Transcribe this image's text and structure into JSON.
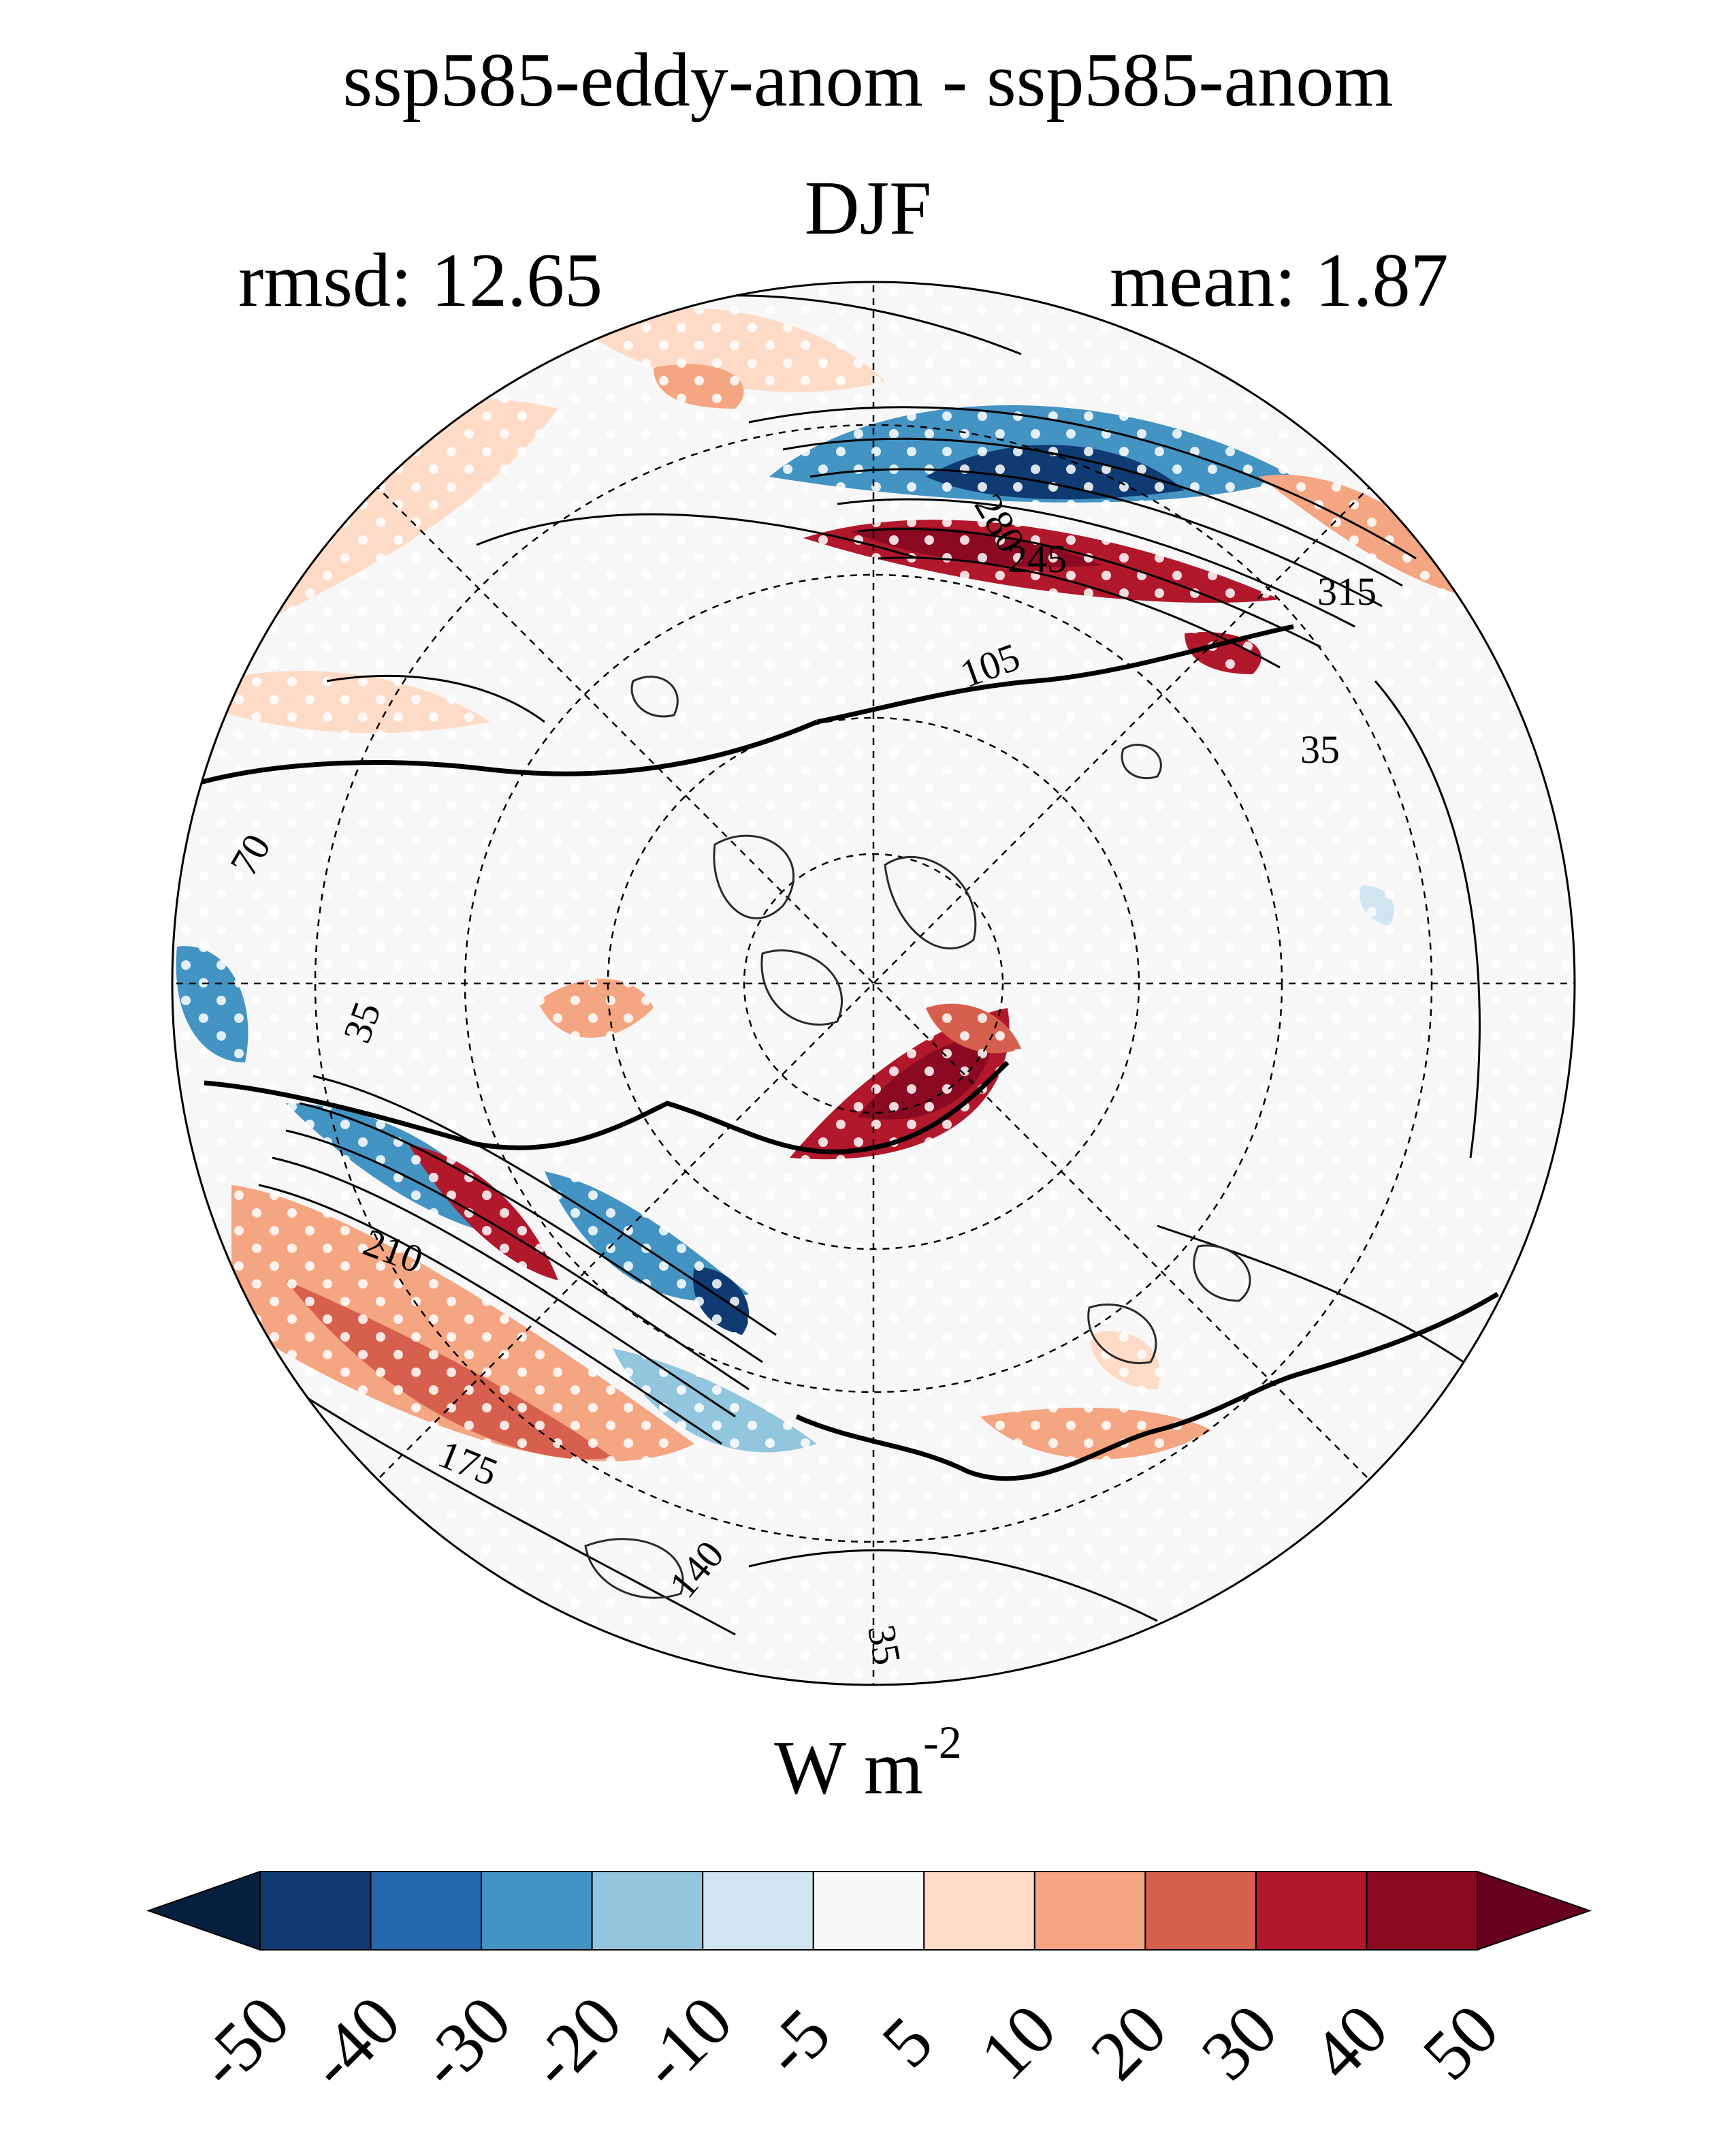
{
  "figure": {
    "title_line1": "ssp585-eddy-anom - ssp585-anom",
    "title_line2": "DJF",
    "rmsd_text": "rmsd: 12.65",
    "mean_text": "mean: 1.87"
  },
  "chart_data": {
    "type": "heatmap",
    "projection": "north polar stereographic",
    "title": "ssp585-eddy-anom - ssp585-anom",
    "season": "DJF",
    "stats": {
      "rmsd": 12.65,
      "mean": 1.87
    },
    "colorbar": {
      "unit_base": "W m",
      "unit_exponent": "-2",
      "tick_labels": [
        "-50",
        "-40",
        "-30",
        "-20",
        "-10",
        "-5",
        "5",
        "10",
        "20",
        "30",
        "40",
        "50"
      ],
      "levels": [
        -50,
        -40,
        -30,
        -20,
        -10,
        -5,
        5,
        10,
        20,
        30,
        40,
        50
      ],
      "colors": [
        "#08203f",
        "#0f3b72",
        "#2367ad",
        "#4393c3",
        "#92c5de",
        "#d1e5f0",
        "#f7f7f7",
        "#fddbc7",
        "#f4a582",
        "#d6604d",
        "#b2182b",
        "#8b0a22",
        "#67001f"
      ],
      "extend": "both"
    },
    "contour_labels": [
      "315",
      "280",
      "245",
      "210",
      "175",
      "140",
      "105",
      "70",
      "35"
    ],
    "stippling": "white dots"
  }
}
